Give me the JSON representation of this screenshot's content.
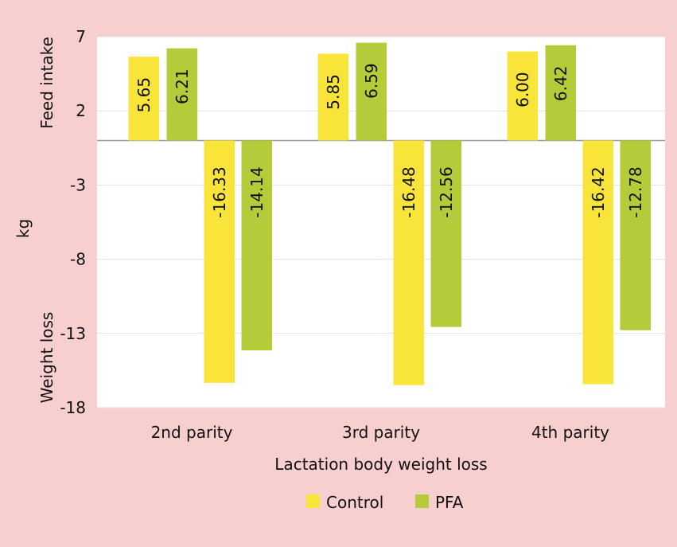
{
  "chart_data": {
    "type": "bar",
    "categories": [
      "2nd parity",
      "3rd parity",
      "4th parity"
    ],
    "series": [
      {
        "name": "Control",
        "color": "#f9e43a",
        "feed_intake": [
          5.65,
          5.85,
          6.0
        ],
        "weight_loss": [
          -16.33,
          -16.48,
          -16.42
        ]
      },
      {
        "name": "PFA",
        "color": "#b6cb3a",
        "feed_intake": [
          6.21,
          6.59,
          6.42
        ],
        "weight_loss": [
          -14.14,
          -12.56,
          -12.78
        ]
      }
    ],
    "data_labels": {
      "feed_intake": [
        [
          "5.65",
          "6.21"
        ],
        [
          "5.85",
          "6.59"
        ],
        [
          "6.00",
          "6.42"
        ]
      ],
      "weight_loss": [
        [
          "-16.33",
          "-14.14"
        ],
        [
          "-16.48",
          "-12.56"
        ],
        [
          "-16.42",
          "-12.78"
        ]
      ]
    },
    "y_ticks": [
      7,
      2,
      -3,
      -8,
      -13,
      -18
    ],
    "y_tick_labels": [
      "7",
      "2",
      "-3",
      "-8",
      "-13",
      "-18"
    ],
    "ylim": [
      -18,
      7
    ],
    "ylabel": "kg",
    "ylabel_top": "Feed intake",
    "ylabel_bottom": "Weight loss",
    "xlabel": "Lactation body weight loss",
    "grid": true,
    "legend_position": "bottom"
  }
}
